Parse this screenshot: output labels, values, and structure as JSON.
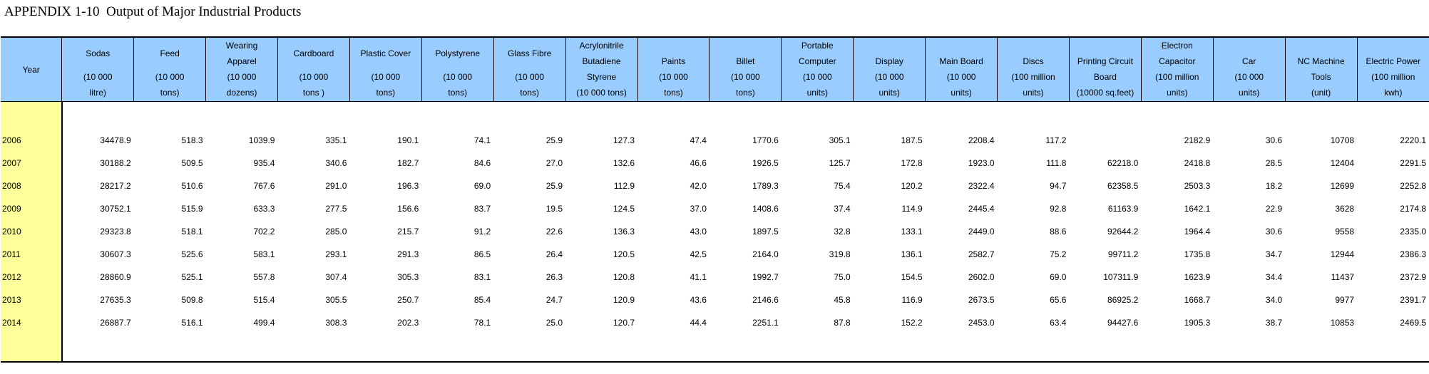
{
  "title": "APPENDIX 1-10  Output of Major Industrial Products",
  "year_header": "Year",
  "columns": [
    {
      "name": "Sodas",
      "unit": "(10 000\nlitre)"
    },
    {
      "name": "Feed",
      "unit": "(10 000\ntons)"
    },
    {
      "name": "Wearing\nApparel",
      "unit": "(10 000\ndozens)"
    },
    {
      "name": "Cardboard",
      "unit": "(10 000\ntons )"
    },
    {
      "name": "Plastic Cover",
      "unit": "(10 000\ntons)"
    },
    {
      "name": "Polystyrene",
      "unit": "(10 000\ntons)"
    },
    {
      "name": "Glass Fibre",
      "unit": "(10 000\ntons)"
    },
    {
      "name": "Acrylonitrile\nButadiene",
      "unit": "Styrene\n(10 000 tons)"
    },
    {
      "name": "",
      "unit": "Paints\n(10 000\ntons)",
      "full": true
    },
    {
      "name": "",
      "unit": "Billet\n(10 000\ntons)",
      "full": true
    },
    {
      "name": "Portable\nComputer",
      "unit": "(10 000\nunits)"
    },
    {
      "name": "",
      "unit": "Display\n(10 000\nunits)",
      "full": true
    },
    {
      "name": "",
      "unit": "Main Board\n(10 000\nunits)",
      "full": true
    },
    {
      "name": "",
      "unit": "Discs\n(100 million\nunits)",
      "full": true
    },
    {
      "name": "",
      "unit": "Printing Circuit\nBoard\n(10000 sq.feet)",
      "full": true
    },
    {
      "name": "Electron\nCapacitor",
      "unit": "(100 million\nunits)"
    },
    {
      "name": "",
      "unit": "Car\n(10 000\nunits)",
      "full": true
    },
    {
      "name": "",
      "unit": "NC Machine\nTools\n(unit)",
      "full": true
    },
    {
      "name": "",
      "unit": "Electric Power\n(100 million\nkwh)",
      "full": true
    }
  ],
  "rows": [
    {
      "year": "2006",
      "values": [
        "34478.9",
        "518.3",
        "1039.9",
        "335.1",
        "190.1",
        "74.1",
        "25.9",
        "127.3",
        "47.4",
        "1770.6",
        "305.1",
        "187.5",
        "2208.4",
        "117.2",
        "",
        "2182.9",
        "30.6",
        "10708",
        "2220.1"
      ]
    },
    {
      "year": "2007",
      "values": [
        "30188.2",
        "509.5",
        "935.4",
        "340.6",
        "182.7",
        "84.6",
        "27.0",
        "132.6",
        "46.6",
        "1926.5",
        "125.7",
        "172.8",
        "1923.0",
        "111.8",
        "62218.0",
        "2418.8",
        "28.5",
        "12404",
        "2291.5"
      ]
    },
    {
      "year": "2008",
      "values": [
        "28217.2",
        "510.6",
        "767.6",
        "291.0",
        "196.3",
        "69.0",
        "25.9",
        "112.9",
        "42.0",
        "1789.3",
        "75.4",
        "120.2",
        "2322.4",
        "94.7",
        "62358.5",
        "2503.3",
        "18.2",
        "12699",
        "2252.8"
      ]
    },
    {
      "year": "2009",
      "values": [
        "30752.1",
        "515.9",
        "633.3",
        "277.5",
        "156.6",
        "83.7",
        "19.5",
        "124.5",
        "37.0",
        "1408.6",
        "37.4",
        "114.9",
        "2445.4",
        "92.8",
        "61163.9",
        "1642.1",
        "22.9",
        "3628",
        "2174.8"
      ]
    },
    {
      "year": "2010",
      "values": [
        "29323.8",
        "518.1",
        "702.2",
        "285.0",
        "215.7",
        "91.2",
        "22.6",
        "136.3",
        "43.0",
        "1897.5",
        "32.8",
        "133.1",
        "2449.0",
        "88.6",
        "92644.2",
        "1964.4",
        "30.6",
        "9558",
        "2335.0"
      ]
    },
    {
      "year": "2011",
      "values": [
        "30607.3",
        "525.6",
        "583.1",
        "293.1",
        "291.3",
        "86.5",
        "26.4",
        "120.5",
        "42.5",
        "2164.0",
        "319.8",
        "136.1",
        "2582.7",
        "75.2",
        "99711.2",
        "1735.8",
        "34.7",
        "12944",
        "2386.3"
      ]
    },
    {
      "year": "2012",
      "values": [
        "28860.9",
        "525.1",
        "557.8",
        "307.4",
        "305.3",
        "83.1",
        "26.3",
        "120.8",
        "41.1",
        "1992.7",
        "75.0",
        "154.5",
        "2602.0",
        "69.0",
        "107311.9",
        "1623.9",
        "34.4",
        "11437",
        "2372.9"
      ]
    },
    {
      "year": "2013",
      "values": [
        "27635.3",
        "509.8",
        "515.4",
        "305.5",
        "250.7",
        "85.4",
        "24.7",
        "120.9",
        "43.6",
        "2146.6",
        "45.8",
        "116.9",
        "2673.5",
        "65.6",
        "86925.2",
        "1668.7",
        "34.0",
        "9977",
        "2391.7"
      ]
    },
    {
      "year": "2014",
      "values": [
        "26887.7",
        "516.1",
        "499.4",
        "308.3",
        "202.3",
        "78.1",
        "25.0",
        "120.7",
        "44.4",
        "2251.1",
        "87.8",
        "152.2",
        "2453.0",
        "63.4",
        "94427.6",
        "1905.3",
        "38.7",
        "10853",
        "2469.5"
      ]
    }
  ]
}
